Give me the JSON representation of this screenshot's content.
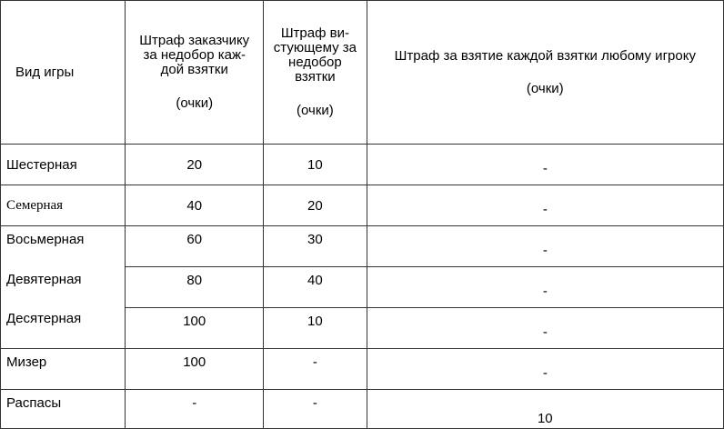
{
  "headers": {
    "game_type": "Вид игры",
    "declarer_penalty": [
      "Штраф заказчику",
      "за недобор каж-",
      "дой взятки",
      "",
      "(очки)"
    ],
    "whister_penalty": [
      "Штраф ви-",
      "стующему за",
      "недобор",
      "взятки",
      "",
      "(очки)"
    ],
    "trick_penalty": [
      "Штраф за взятие каждой взятки любому игроку",
      "",
      "(очки)"
    ]
  },
  "rows": [
    {
      "game": "Шестерная",
      "declarer": "20",
      "whister": "10",
      "trick": "-"
    },
    {
      "game": "Семерная",
      "declarer": "40",
      "whister": "20",
      "trick": "-"
    },
    {
      "game": "Восьмерная",
      "declarer": "60",
      "whister": "30",
      "trick": "-"
    },
    {
      "game": "Девятерная",
      "declarer": "80",
      "whister": "40",
      "trick": "-"
    },
    {
      "game": "Десятерная",
      "declarer": "100",
      "whister": "10",
      "trick": "-"
    },
    {
      "game": "Мизер",
      "declarer": "100",
      "whister": "-",
      "trick": "-"
    },
    {
      "game": "Распасы",
      "declarer": "-",
      "whister": "-",
      "trick": "10"
    }
  ]
}
